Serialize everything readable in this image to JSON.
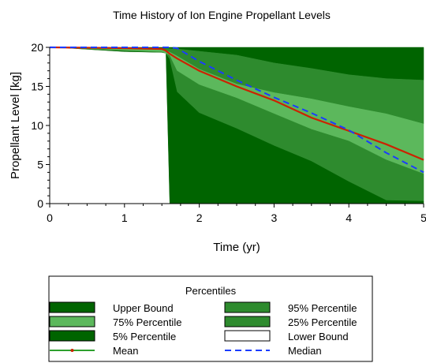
{
  "chart_data": {
    "type": "area",
    "title": "Time History of Ion Engine Propellant Levels",
    "xlabel": "Time (yr)",
    "ylabel": "Propellant Level [kg]",
    "xlim": [
      0,
      5
    ],
    "ylim": [
      0,
      20
    ],
    "x_ticks": [
      0,
      1,
      2,
      3,
      4,
      5
    ],
    "y_ticks": [
      0,
      5,
      10,
      15,
      20
    ],
    "grid": false,
    "x": [
      0,
      0.5,
      1.0,
      1.5,
      1.55,
      1.6,
      1.7,
      2.0,
      2.5,
      3.0,
      3.5,
      4.0,
      4.5,
      5.0
    ],
    "series": [
      {
        "name": "Upper Bound",
        "values": [
          20,
          20,
          20,
          20,
          20,
          20,
          20,
          20,
          20,
          20,
          20,
          20,
          20,
          20
        ]
      },
      {
        "name": "95% Percentile",
        "values": [
          20,
          19.95,
          19.9,
          19.85,
          19.85,
          19.85,
          19.8,
          19.5,
          19.0,
          18.0,
          17.3,
          16.5,
          16.0,
          15.8
        ]
      },
      {
        "name": "75% Percentile",
        "values": [
          20,
          19.9,
          19.8,
          19.7,
          19.6,
          19.4,
          18.9,
          17.2,
          15.3,
          14.2,
          13.4,
          12.4,
          11.5,
          10.2
        ]
      },
      {
        "name": "25% Percentile",
        "values": [
          20,
          19.8,
          19.6,
          19.4,
          19.2,
          19.0,
          17.0,
          15.2,
          13.5,
          11.5,
          9.5,
          8.0,
          5.6,
          3.8
        ]
      },
      {
        "name": "5% Percentile",
        "values": [
          20,
          19.7,
          19.5,
          19.3,
          19.2,
          18.5,
          14.3,
          11.6,
          9.6,
          7.4,
          5.4,
          2.8,
          0.4,
          0.3
        ]
      },
      {
        "name": "Lower Bound",
        "values": [
          20,
          19.7,
          19.4,
          19.3,
          19.2,
          0,
          0,
          0,
          0,
          0,
          0,
          0,
          0,
          0
        ]
      },
      {
        "name": "Mean",
        "values": [
          20,
          19.95,
          19.9,
          19.8,
          19.6,
          19.2,
          18.6,
          17.0,
          15.0,
          13.2,
          11.0,
          9.3,
          7.6,
          5.6
        ]
      },
      {
        "name": "Median",
        "values": [
          20,
          20,
          20,
          20,
          20,
          20,
          19.9,
          18.2,
          15.8,
          13.6,
          11.6,
          9.4,
          6.5,
          4.0
        ]
      }
    ],
    "legend": {
      "title": "Percentiles",
      "placement": "bottom",
      "entries": [
        {
          "label": "Upper Bound",
          "color": "#006400",
          "kind": "box"
        },
        {
          "label": "95% Percentile",
          "color": "#2e8b2e",
          "kind": "box"
        },
        {
          "label": "75% Percentile",
          "color": "#5cb85c",
          "kind": "box"
        },
        {
          "label": "25% Percentile",
          "color": "#2e8b2e",
          "kind": "box"
        },
        {
          "label": "5% Percentile",
          "color": "#006400",
          "kind": "box"
        },
        {
          "label": "Lower Bound",
          "color": "#ffffff",
          "kind": "box"
        },
        {
          "label": "Mean",
          "color": "#cc2200",
          "kind": "mean-line"
        },
        {
          "label": "Median",
          "color": "#1a3cff",
          "kind": "dash-line"
        }
      ]
    },
    "colors": {
      "dark_green": "#006400",
      "mid_green": "#2e8b2e",
      "light_green": "#5cb85c",
      "mean_line": "#cc2200",
      "mean_marker": "#2ea02e",
      "median_line": "#1a3cff"
    }
  }
}
